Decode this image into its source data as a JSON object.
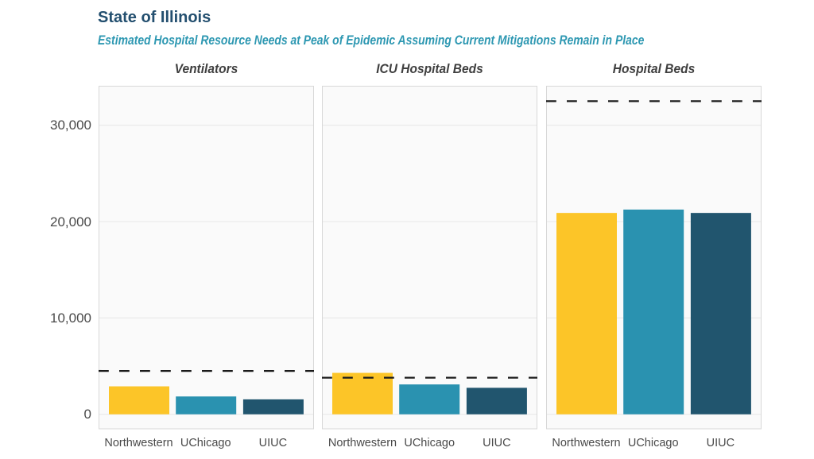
{
  "header": {
    "title": "State of Illinois",
    "subtitle": "Estimated Hospital Resource Needs at Peak of Epidemic Assuming Current Mitigations Remain in Place"
  },
  "chart_data": {
    "type": "bar",
    "title": "State of Illinois",
    "subtitle": "Estimated Hospital Resource Needs at Peak of Epidemic Assuming Current Mitigations Remain in Place",
    "categories": [
      "Northwestern",
      "UChicago",
      "UIUC"
    ],
    "panels": [
      {
        "title": "Ventilators",
        "values": [
          2900,
          1850,
          1550
        ],
        "capacity_line": 4500
      },
      {
        "title": "ICU Hospital Beds",
        "values": [
          4300,
          3100,
          2750
        ],
        "capacity_line": 3800
      },
      {
        "title": "Hospital Beds",
        "values": [
          20900,
          21250,
          20900
        ],
        "capacity_line": 32500
      }
    ],
    "xlabel": "",
    "ylabel": "",
    "ylim": [
      -1550,
      34100
    ],
    "yticks": [
      0,
      10000,
      20000,
      30000
    ],
    "ytick_labels": [
      "0",
      "10,000",
      "20,000",
      "30,000"
    ],
    "grid": true,
    "legend": "none",
    "bar_colors": [
      "#fcc528",
      "#2a92b0",
      "#21556e"
    ],
    "capacity_line_style": "dashed",
    "capacity_line_color": "#1a1a1a",
    "panel_background": "#fafafa",
    "panel_border_color": "#d8d8d8",
    "gridline_color": "#e9e9e9",
    "title_color": "#234f6f",
    "subtitle_color": "#2e98b2"
  }
}
